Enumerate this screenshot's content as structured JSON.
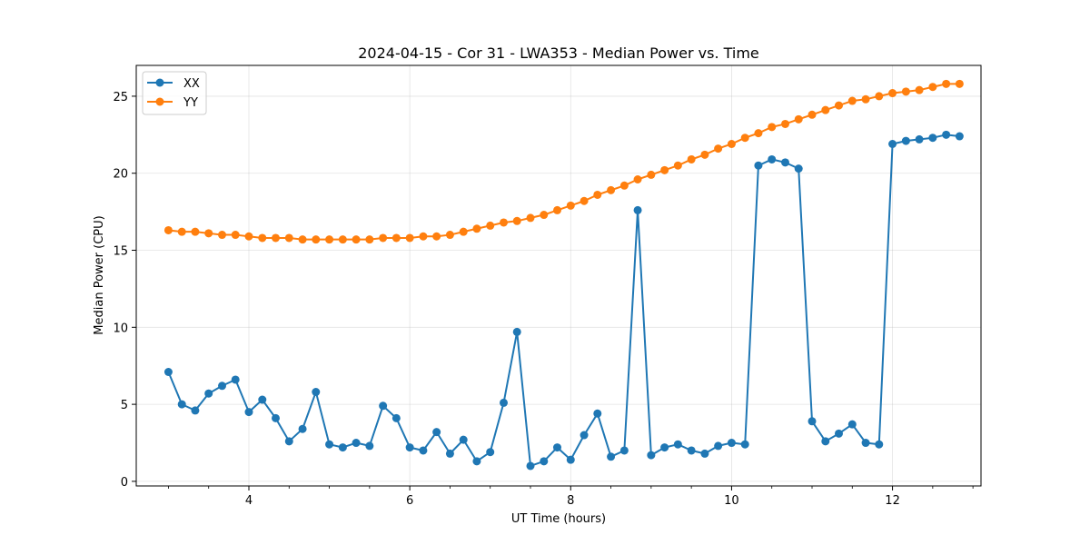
{
  "chart_data": {
    "type": "line",
    "title": "2024-04-15 - Cor 31 - LWA353 - Median Power vs. Time",
    "xlabel": "UT Time (hours)",
    "ylabel": "Median Power (CPU)",
    "xlim": [
      2.6,
      13.1
    ],
    "ylim": [
      -0.3,
      27.0
    ],
    "xticks": [
      4,
      6,
      8,
      10,
      12
    ],
    "xtick_labels": [
      "4",
      "6",
      "8",
      "10",
      "12"
    ],
    "yticks": [
      0,
      5,
      10,
      15,
      20,
      25
    ],
    "ytick_labels": [
      "0",
      "5",
      "10",
      "15",
      "20",
      "25"
    ],
    "grid": true,
    "legend_position": "upper-left",
    "x": [
      3.0,
      3.167,
      3.333,
      3.5,
      3.667,
      3.833,
      4.0,
      4.167,
      4.333,
      4.5,
      4.667,
      4.833,
      5.0,
      5.167,
      5.333,
      5.5,
      5.667,
      5.833,
      6.0,
      6.167,
      6.333,
      6.5,
      6.667,
      6.833,
      7.0,
      7.167,
      7.333,
      7.5,
      7.667,
      7.833,
      8.0,
      8.167,
      8.333,
      8.5,
      8.667,
      8.833,
      9.0,
      9.167,
      9.333,
      9.5,
      9.667,
      9.833,
      10.0,
      10.167,
      10.333,
      10.5,
      10.667,
      10.833,
      11.0,
      11.167,
      11.333,
      11.5,
      11.667,
      11.833,
      12.0,
      12.167,
      12.333,
      12.5,
      12.667,
      12.833
    ],
    "series": [
      {
        "name": "XX",
        "color": "#1f77b4",
        "values": [
          7.1,
          5.0,
          4.6,
          5.7,
          6.2,
          6.6,
          4.5,
          5.3,
          4.1,
          2.6,
          3.4,
          5.8,
          2.4,
          2.2,
          2.5,
          2.3,
          4.9,
          4.1,
          2.2,
          2.0,
          3.2,
          1.8,
          2.7,
          1.3,
          1.9,
          5.1,
          9.7,
          1.0,
          1.3,
          2.2,
          1.4,
          3.0,
          4.4,
          1.6,
          2.0,
          17.6,
          1.7,
          2.2,
          2.4,
          2.0,
          1.8,
          2.3,
          2.5,
          2.4,
          20.5,
          20.9,
          20.7,
          20.3,
          3.9,
          2.6,
          3.1,
          3.7,
          2.5,
          2.4,
          21.9,
          22.1,
          22.2,
          22.3,
          22.5,
          22.4
        ]
      },
      {
        "name": "YY",
        "color": "#ff7f0e",
        "values": [
          16.3,
          16.2,
          16.2,
          16.1,
          16.0,
          16.0,
          15.9,
          15.8,
          15.8,
          15.8,
          15.7,
          15.7,
          15.7,
          15.7,
          15.7,
          15.7,
          15.8,
          15.8,
          15.8,
          15.9,
          15.9,
          16.0,
          16.2,
          16.4,
          16.6,
          16.8,
          16.9,
          17.1,
          17.3,
          17.6,
          17.9,
          18.2,
          18.6,
          18.9,
          19.2,
          19.6,
          19.9,
          20.2,
          20.5,
          20.9,
          21.2,
          21.6,
          21.9,
          22.3,
          22.6,
          23.0,
          23.2,
          23.5,
          23.8,
          24.1,
          24.4,
          24.7,
          24.8,
          25.0,
          25.2,
          25.3,
          25.4,
          25.6,
          25.8,
          25.8
        ]
      }
    ]
  }
}
